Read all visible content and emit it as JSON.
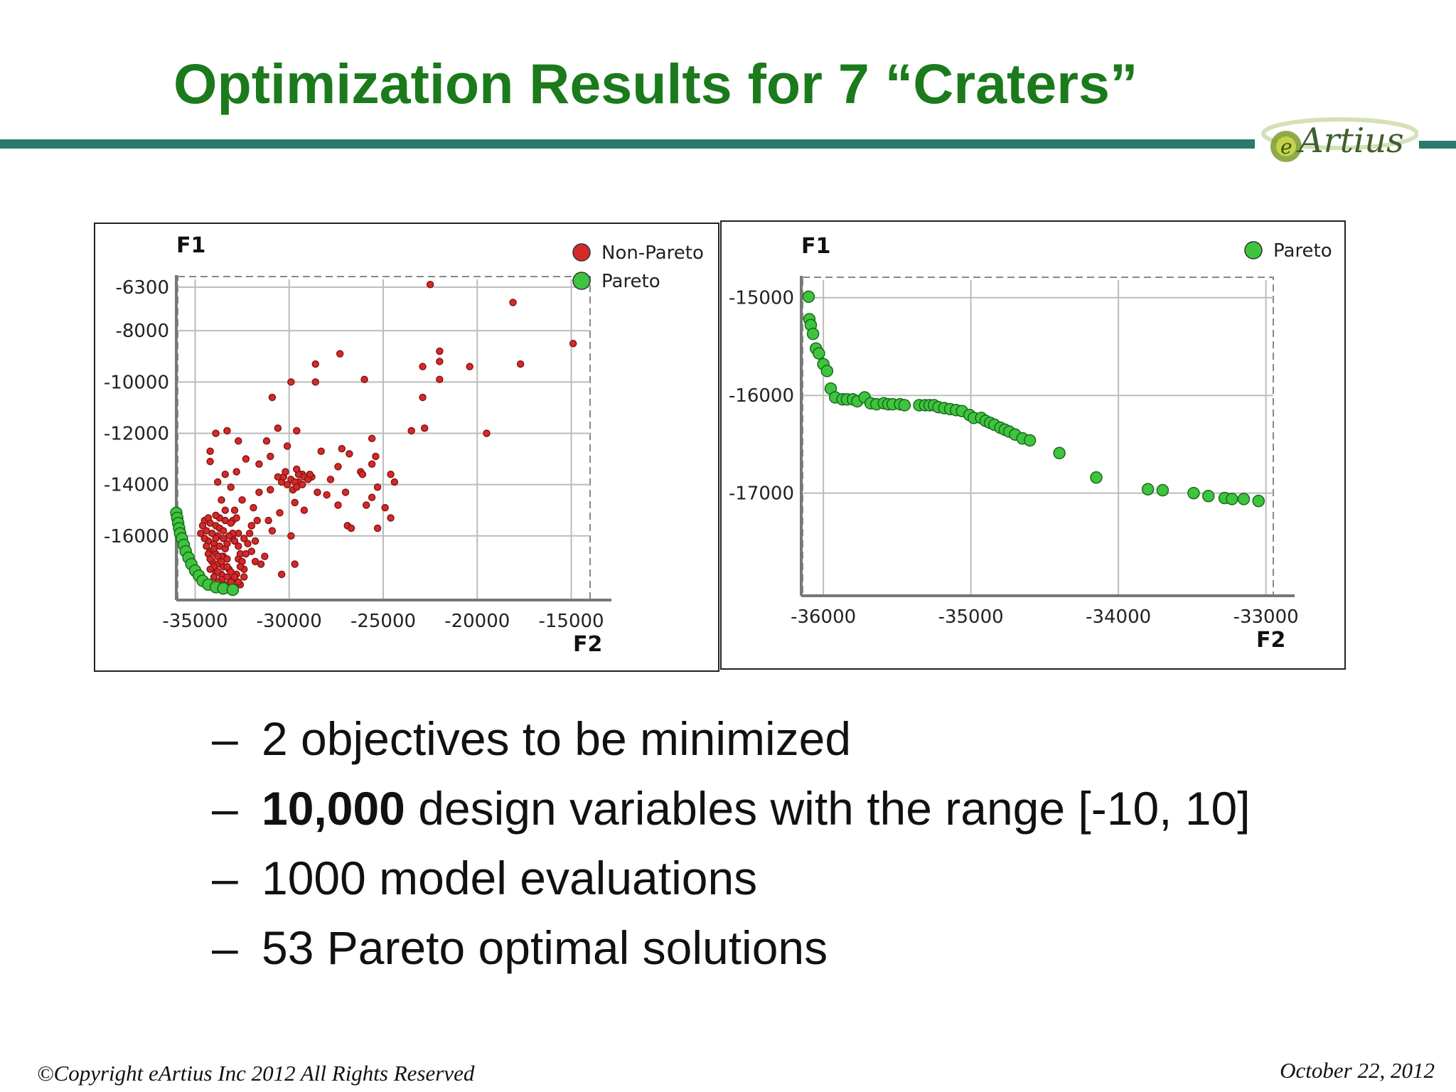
{
  "slide": {
    "title": "Optimization Results for 7 “Craters”",
    "logo_text": "eArtius",
    "bullets": [
      {
        "dash": "–",
        "bold": "",
        "text": "2 objectives to be minimized"
      },
      {
        "dash": "–",
        "bold": "10,000",
        "text": " design variables with the range [-10, 10]"
      },
      {
        "dash": "–",
        "bold": "",
        "text": "1000 model evaluations"
      },
      {
        "dash": "–",
        "bold": "",
        "text": "53 Pareto optimal solutions"
      }
    ],
    "footer_left": "©Copyright eArtius Inc 2012 All Rights Reserved",
    "footer_right": "October 22, 2012",
    "colors": {
      "title": "#1b7a1b",
      "rule": "#2a7a6e",
      "non_pareto": "#d42a2a",
      "pareto": "#3ec43e"
    }
  },
  "chart_data": [
    {
      "type": "scatter",
      "title": "",
      "xlabel": "F2",
      "ylabel": "F1",
      "xlim": [
        -36000,
        -14000
      ],
      "ylim": [
        -18500,
        -6000
      ],
      "x_ticks": [
        -35000,
        -30000,
        -25000,
        -20000,
        -15000
      ],
      "y_ticks": [
        -6300,
        -8000,
        -10000,
        -12000,
        -14000,
        -16000
      ],
      "grid": true,
      "legend": "top-right",
      "series": [
        {
          "name": "Non-Pareto",
          "color": "#d42a2a",
          "points": [
            [
              -22500,
              -6200
            ],
            [
              -18100,
              -6900
            ],
            [
              -14900,
              -8500
            ],
            [
              -17700,
              -9300
            ],
            [
              -22000,
              -8800
            ],
            [
              -22000,
              -9200
            ],
            [
              -20400,
              -9400
            ],
            [
              -27300,
              -8900
            ],
            [
              -28600,
              -10000
            ],
            [
              -28600,
              -9300
            ],
            [
              -26000,
              -9900
            ],
            [
              -22900,
              -9400
            ],
            [
              -22000,
              -9900
            ],
            [
              -19500,
              -12000
            ],
            [
              -22900,
              -10600
            ],
            [
              -23500,
              -11900
            ],
            [
              -22800,
              -11800
            ],
            [
              -25600,
              -12200
            ],
            [
              -25400,
              -12900
            ],
            [
              -25600,
              -13200
            ],
            [
              -25300,
              -14100
            ],
            [
              -24600,
              -13600
            ],
            [
              -24400,
              -13900
            ],
            [
              -26800,
              -12800
            ],
            [
              -26200,
              -13500
            ],
            [
              -27200,
              -12600
            ],
            [
              -27400,
              -13300
            ],
            [
              -28300,
              -12700
            ],
            [
              -28800,
              -13700
            ],
            [
              -29400,
              -13600
            ],
            [
              -29200,
              -15000
            ],
            [
              -29900,
              -16000
            ],
            [
              -28000,
              -14400
            ],
            [
              -27400,
              -14800
            ],
            [
              -26900,
              -15600
            ],
            [
              -26700,
              -15700
            ],
            [
              -25900,
              -14800
            ],
            [
              -25600,
              -14500
            ],
            [
              -25300,
              -15700
            ],
            [
              -24900,
              -14900
            ],
            [
              -24600,
              -15300
            ],
            [
              -29700,
              -17100
            ],
            [
              -30400,
              -17500
            ],
            [
              -29700,
              -14700
            ],
            [
              -30600,
              -11800
            ],
            [
              -30900,
              -10600
            ],
            [
              -29900,
              -10000
            ],
            [
              -29600,
              -11900
            ],
            [
              -31000,
              -12900
            ],
            [
              -31200,
              -12300
            ],
            [
              -30400,
              -13900
            ],
            [
              -30100,
              -12500
            ],
            [
              -31600,
              -13200
            ],
            [
              -32300,
              -13000
            ],
            [
              -32800,
              -13500
            ],
            [
              -33400,
              -13600
            ],
            [
              -33800,
              -13900
            ],
            [
              -33600,
              -14600
            ],
            [
              -33100,
              -14100
            ],
            [
              -32500,
              -14600
            ],
            [
              -31900,
              -14900
            ],
            [
              -31700,
              -15400
            ],
            [
              -30900,
              -15800
            ],
            [
              -31300,
              -16800
            ],
            [
              -33300,
              -11900
            ],
            [
              -33900,
              -12000
            ],
            [
              -34200,
              -13100
            ],
            [
              -34200,
              -12700
            ],
            [
              -32700,
              -12300
            ],
            [
              -31600,
              -14300
            ],
            [
              -31000,
              -14200
            ],
            [
              -30600,
              -13700
            ],
            [
              -30500,
              -15100
            ],
            [
              -31100,
              -15400
            ],
            [
              -32000,
              -15600
            ],
            [
              -29500,
              -13900
            ],
            [
              -29300,
              -13600
            ],
            [
              -28500,
              -14300
            ],
            [
              -27800,
              -13800
            ],
            [
              -27000,
              -14300
            ],
            [
              -26100,
              -13600
            ],
            [
              -30300,
              -13700
            ],
            [
              -29900,
              -13800
            ],
            [
              -29700,
              -13900
            ],
            [
              -29500,
              -13600
            ],
            [
              -29200,
              -13700
            ],
            [
              -29000,
              -13800
            ],
            [
              -30100,
              -14000
            ],
            [
              -29800,
              -14200
            ],
            [
              -29600,
              -14100
            ],
            [
              -29300,
              -14000
            ],
            [
              -28900,
              -13600
            ],
            [
              -30200,
              -13500
            ],
            [
              -29600,
              -13400
            ],
            [
              -33400,
              -15000
            ],
            [
              -33000,
              -15400
            ],
            [
              -32700,
              -15900
            ],
            [
              -32400,
              -16100
            ],
            [
              -32000,
              -16600
            ],
            [
              -31500,
              -17100
            ],
            [
              -32700,
              -16900
            ],
            [
              -33500,
              -16800
            ],
            [
              -33000,
              -16100
            ],
            [
              -34500,
              -15400
            ],
            [
              -34200,
              -15500
            ],
            [
              -33900,
              -15600
            ],
            [
              -33700,
              -15700
            ],
            [
              -34400,
              -15800
            ],
            [
              -34100,
              -15900
            ],
            [
              -33800,
              -16000
            ],
            [
              -33500,
              -16100
            ],
            [
              -34300,
              -16200
            ],
            [
              -34000,
              -16300
            ],
            [
              -33700,
              -16400
            ],
            [
              -33400,
              -16500
            ],
            [
              -34200,
              -16600
            ],
            [
              -33900,
              -16700
            ],
            [
              -33600,
              -16800
            ],
            [
              -33300,
              -16900
            ],
            [
              -34100,
              -17000
            ],
            [
              -33800,
              -17100
            ],
            [
              -33500,
              -17200
            ],
            [
              -33200,
              -17300
            ],
            [
              -33900,
              -17400
            ],
            [
              -33600,
              -17500
            ],
            [
              -33300,
              -17600
            ],
            [
              -33000,
              -17700
            ],
            [
              -34600,
              -15600
            ],
            [
              -34700,
              -15900
            ],
            [
              -34500,
              -16100
            ],
            [
              -34400,
              -16400
            ],
            [
              -34300,
              -16700
            ],
            [
              -34200,
              -16900
            ],
            [
              -34000,
              -17200
            ],
            [
              -33800,
              -17400
            ],
            [
              -33600,
              -17700
            ],
            [
              -33400,
              -17900
            ],
            [
              -33200,
              -18000
            ],
            [
              -32900,
              -18000
            ],
            [
              -33700,
              -15300
            ],
            [
              -33400,
              -15400
            ],
            [
              -33100,
              -15500
            ],
            [
              -33000,
              -15900
            ],
            [
              -32900,
              -16200
            ],
            [
              -32700,
              -16400
            ],
            [
              -32600,
              -16700
            ],
            [
              -32500,
              -17000
            ],
            [
              -32400,
              -17300
            ],
            [
              -32400,
              -17600
            ],
            [
              -32600,
              -17900
            ],
            [
              -33500,
              -15800
            ],
            [
              -33200,
              -16000
            ],
            [
              -33900,
              -16100
            ],
            [
              -34000,
              -16500
            ],
            [
              -33800,
              -16800
            ],
            [
              -33600,
              -17000
            ],
            [
              -33300,
              -17200
            ],
            [
              -33100,
              -17400
            ],
            [
              -32800,
              -17500
            ],
            [
              -32700,
              -17800
            ],
            [
              -33900,
              -15200
            ],
            [
              -34300,
              -15300
            ],
            [
              -32900,
              -15000
            ],
            [
              -32800,
              -15300
            ],
            [
              -33300,
              -16300
            ],
            [
              -34200,
              -17300
            ],
            [
              -34000,
              -17600
            ],
            [
              -33800,
              -17800
            ],
            [
              -33500,
              -18000
            ],
            [
              -33100,
              -17800
            ],
            [
              -32900,
              -17600
            ],
            [
              -32600,
              -17200
            ],
            [
              -32300,
              -16700
            ],
            [
              -32200,
              -16300
            ],
            [
              -32100,
              -15900
            ],
            [
              -32000,
              -15600
            ],
            [
              -31800,
              -16200
            ],
            [
              -31800,
              -17000
            ]
          ]
        },
        {
          "name": "Pareto",
          "color": "#3ec43e",
          "points": [
            [
              -36000,
              -15100
            ],
            [
              -35950,
              -15300
            ],
            [
              -35900,
              -15500
            ],
            [
              -35850,
              -15700
            ],
            [
              -35800,
              -15900
            ],
            [
              -35700,
              -16100
            ],
            [
              -35600,
              -16350
            ],
            [
              -35500,
              -16600
            ],
            [
              -35350,
              -16850
            ],
            [
              -35200,
              -17100
            ],
            [
              -35000,
              -17350
            ],
            [
              -34800,
              -17550
            ],
            [
              -34600,
              -17750
            ],
            [
              -34300,
              -17900
            ],
            [
              -33900,
              -18000
            ],
            [
              -33500,
              -18050
            ],
            [
              -33000,
              -18100
            ]
          ]
        }
      ]
    },
    {
      "type": "scatter",
      "title": "",
      "xlabel": "F2",
      "ylabel": "F1",
      "xlim": [
        -36150,
        -32950
      ],
      "ylim": [
        -18050,
        -14820
      ],
      "x_ticks": [
        -36000,
        -35000,
        -34000,
        -33000
      ],
      "y_ticks": [
        -15000,
        -16000,
        -17000
      ],
      "grid": true,
      "legend": "top-right",
      "series": [
        {
          "name": "Pareto",
          "color": "#3ec43e",
          "points": [
            [
              -36100,
              -14990
            ],
            [
              -36095,
              -15220
            ],
            [
              -36085,
              -15280
            ],
            [
              -36070,
              -15370
            ],
            [
              -36050,
              -15520
            ],
            [
              -36030,
              -15570
            ],
            [
              -36000,
              -15680
            ],
            [
              -35975,
              -15750
            ],
            [
              -35950,
              -15930
            ],
            [
              -35920,
              -16020
            ],
            [
              -35870,
              -16040
            ],
            [
              -35840,
              -16040
            ],
            [
              -35800,
              -16040
            ],
            [
              -35770,
              -16060
            ],
            [
              -35720,
              -16020
            ],
            [
              -35680,
              -16080
            ],
            [
              -35640,
              -16090
            ],
            [
              -35590,
              -16080
            ],
            [
              -35560,
              -16090
            ],
            [
              -35530,
              -16090
            ],
            [
              -35480,
              -16090
            ],
            [
              -35450,
              -16100
            ],
            [
              -35350,
              -16100
            ],
            [
              -35310,
              -16100
            ],
            [
              -35280,
              -16100
            ],
            [
              -35250,
              -16100
            ],
            [
              -35220,
              -16120
            ],
            [
              -35180,
              -16130
            ],
            [
              -35140,
              -16140
            ],
            [
              -35100,
              -16150
            ],
            [
              -35060,
              -16160
            ],
            [
              -35010,
              -16200
            ],
            [
              -34980,
              -16230
            ],
            [
              -34930,
              -16230
            ],
            [
              -34900,
              -16260
            ],
            [
              -34870,
              -16280
            ],
            [
              -34840,
              -16300
            ],
            [
              -34800,
              -16330
            ],
            [
              -34770,
              -16350
            ],
            [
              -34740,
              -16370
            ],
            [
              -34700,
              -16400
            ],
            [
              -34650,
              -16440
            ],
            [
              -34600,
              -16460
            ],
            [
              -34400,
              -16590
            ],
            [
              -34150,
              -16840
            ],
            [
              -33800,
              -16960
            ],
            [
              -33700,
              -16970
            ],
            [
              -33490,
              -17000
            ],
            [
              -33390,
              -17030
            ],
            [
              -33280,
              -17050
            ],
            [
              -33230,
              -17060
            ],
            [
              -33150,
              -17060
            ],
            [
              -33050,
              -17080
            ]
          ]
        }
      ]
    }
  ]
}
